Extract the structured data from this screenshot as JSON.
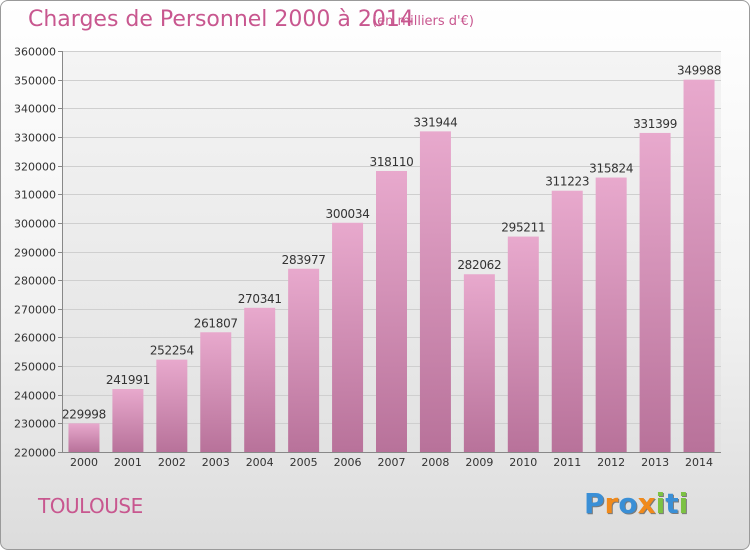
{
  "header": {
    "title": "Charges de Personnel 2000 à 2014",
    "subtitle": "(en milliers d'€)"
  },
  "footer": {
    "city": "TOULOUSE",
    "brand": {
      "letters": [
        {
          "char": "P",
          "color": "#3a8fd6"
        },
        {
          "char": "r",
          "color": "#f08a1c"
        },
        {
          "char": "o",
          "color": "#3a8fd6"
        },
        {
          "char": "x",
          "color": "#f08a1c"
        },
        {
          "char": "i",
          "color": "#7cc243"
        },
        {
          "char": "t",
          "color": "#3a8fd6"
        },
        {
          "char": "i",
          "color": "#7cc243"
        }
      ]
    }
  },
  "colors": {
    "bar_top": "#e8a9cd",
    "bar_bottom": "#b8729a",
    "accent": "#c8578f"
  },
  "chart_data": {
    "type": "bar",
    "title": "Charges de Personnel 2000 à 2014",
    "subtitle": "(en milliers d'€)",
    "categories": [
      "2000",
      "2001",
      "2002",
      "2003",
      "2004",
      "2005",
      "2006",
      "2007",
      "2008",
      "2009",
      "2010",
      "2011",
      "2012",
      "2013",
      "2014"
    ],
    "values": [
      229998,
      241991,
      252254,
      261807,
      270341,
      283977,
      300034,
      318110,
      331944,
      282062,
      295211,
      311223,
      315824,
      331399,
      349988
    ],
    "ylim": [
      220000,
      360000
    ],
    "yticks": [
      220000,
      230000,
      240000,
      250000,
      260000,
      270000,
      280000,
      290000,
      300000,
      310000,
      320000,
      330000,
      340000,
      350000,
      360000
    ],
    "grid": true,
    "data_labels": true,
    "xlabel": "",
    "ylabel": ""
  }
}
